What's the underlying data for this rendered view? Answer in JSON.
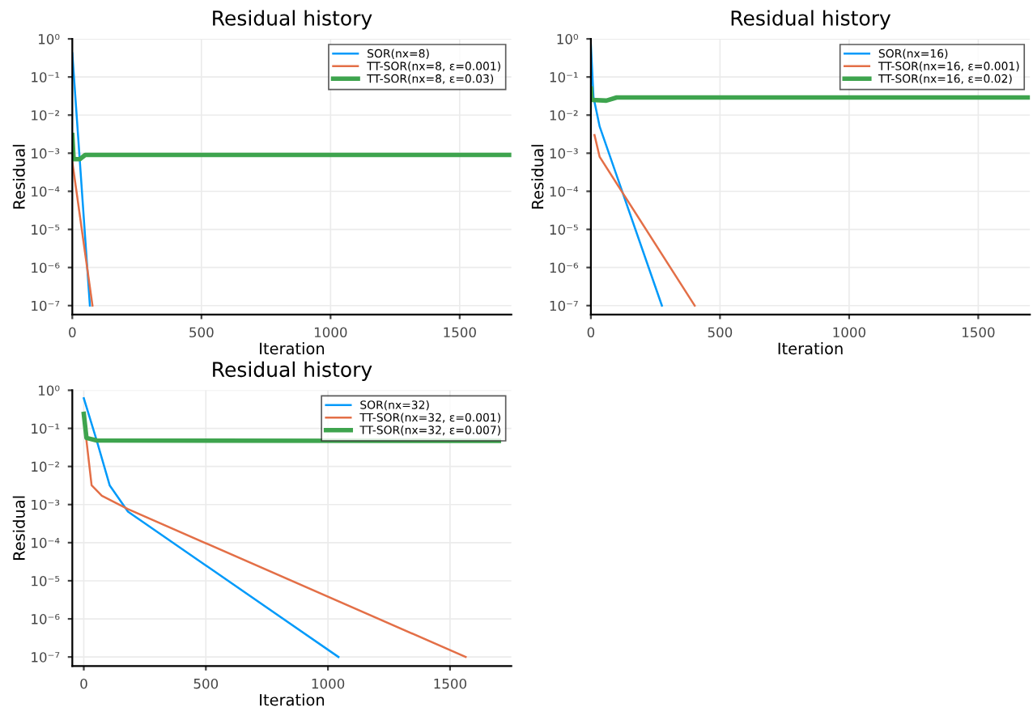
{
  "chart_data": [
    {
      "type": "line",
      "title": "Residual history",
      "xlabel": "Iteration",
      "ylabel": "Residual",
      "log": "y",
      "grid": true,
      "legend": "top right",
      "xlim": [
        0,
        1700
      ],
      "xticks": [
        0,
        500,
        1000,
        1500
      ],
      "ylim": [
        5.8e-08,
        1
      ],
      "yticks": [
        {
          "value": 1,
          "label": "10⁰"
        },
        {
          "value": 0.1,
          "label": "10⁻¹"
        },
        {
          "value": 0.01,
          "label": "10⁻²"
        },
        {
          "value": 0.001,
          "label": "10⁻³"
        },
        {
          "value": 0.0001,
          "label": "10⁻⁴"
        },
        {
          "value": 1e-05,
          "label": "10⁻⁵"
        },
        {
          "value": 1e-06,
          "label": "10⁻⁶"
        },
        {
          "value": 1e-07,
          "label": "10⁻⁷"
        }
      ],
      "series": [
        {
          "name": "SOR(nx=8)",
          "color": "#009afa",
          "x": [
            0,
            28,
            68
          ],
          "values": [
            0.42,
            0.0008,
            1e-07
          ]
        },
        {
          "name": "TT-SOR(nx=8, ε=0.001)",
          "color": "#e36f47",
          "x": [
            0,
            78
          ],
          "values": [
            0.0006,
            1e-07
          ]
        },
        {
          "name": "TT-SOR(nx=8, ε=0.03)",
          "color": "#3ea44e",
          "x": [
            0,
            5,
            30,
            50,
            1700
          ],
          "values": [
            0.003,
            0.0007,
            0.0007,
            0.0009,
            0.0009
          ]
        }
      ]
    },
    {
      "type": "line",
      "title": "Residual history",
      "xlabel": "Iteration",
      "ylabel": "Residual",
      "log": "y",
      "grid": true,
      "legend": "top right",
      "xlim": [
        0,
        1700
      ],
      "xticks": [
        0,
        500,
        1000,
        1500
      ],
      "ylim": [
        5.8e-08,
        1
      ],
      "yticks": [
        {
          "value": 1,
          "label": "10⁰"
        },
        {
          "value": 0.1,
          "label": "10⁻¹"
        },
        {
          "value": 0.01,
          "label": "10⁻²"
        },
        {
          "value": 0.001,
          "label": "10⁻³"
        },
        {
          "value": 0.0001,
          "label": "10⁻⁴"
        },
        {
          "value": 1e-05,
          "label": "10⁻⁵"
        },
        {
          "value": 1e-06,
          "label": "10⁻⁶"
        },
        {
          "value": 1e-07,
          "label": "10⁻⁷"
        }
      ],
      "series": [
        {
          "name": "SOR(nx=16)",
          "color": "#009afa",
          "x": [
            0,
            10,
            34,
            275
          ],
          "values": [
            0.72,
            0.03,
            0.005,
            1e-07
          ]
        },
        {
          "name": "TT-SOR(nx=16, ε=0.001)",
          "color": "#e36f47",
          "x": [
            14,
            34,
            402
          ],
          "values": [
            0.003,
            0.0008,
            1e-07
          ]
        },
        {
          "name": "TT-SOR(nx=16, ε=0.02)",
          "color": "#3ea44e",
          "x": [
            0,
            3,
            60,
            100,
            1700
          ],
          "values": [
            0.05,
            0.025,
            0.024,
            0.029,
            0.029
          ]
        }
      ]
    },
    {
      "type": "line",
      "title": "Residual history",
      "xlabel": "Iteration",
      "ylabel": "Residual",
      "log": "y",
      "grid": true,
      "legend": "top right",
      "xlim": [
        -47,
        1751
      ],
      "xticks": [
        0,
        500,
        1000,
        1500
      ],
      "ylim": [
        5.8e-08,
        1
      ],
      "yticks": [
        {
          "value": 1,
          "label": "10⁰"
        },
        {
          "value": 0.1,
          "label": "10⁻¹"
        },
        {
          "value": 0.01,
          "label": "10⁻²"
        },
        {
          "value": 0.001,
          "label": "10⁻³"
        },
        {
          "value": 0.0001,
          "label": "10⁻⁴"
        },
        {
          "value": 1e-05,
          "label": "10⁻⁵"
        },
        {
          "value": 1e-06,
          "label": "10⁻⁶"
        },
        {
          "value": 1e-07,
          "label": "10⁻⁷"
        }
      ],
      "series": [
        {
          "name": "SOR(nx=32)",
          "color": "#009afa",
          "x": [
            0,
            53,
            106,
            181,
            1043
          ],
          "values": [
            0.62,
            0.048,
            0.0032,
            0.00065,
            1e-07
          ]
        },
        {
          "name": "TT-SOR(nx=32, ε=0.001)",
          "color": "#e36f47",
          "x": [
            6,
            32,
            74,
            181,
            1564
          ],
          "values": [
            0.09,
            0.0032,
            0.0017,
            0.00076,
            1e-07
          ]
        },
        {
          "name": "TT-SOR(nx=32, ε=0.007)",
          "color": "#3ea44e",
          "x": [
            0,
            11,
            53,
            1700
          ],
          "values": [
            0.24,
            0.056,
            0.048,
            0.047
          ]
        }
      ]
    }
  ]
}
